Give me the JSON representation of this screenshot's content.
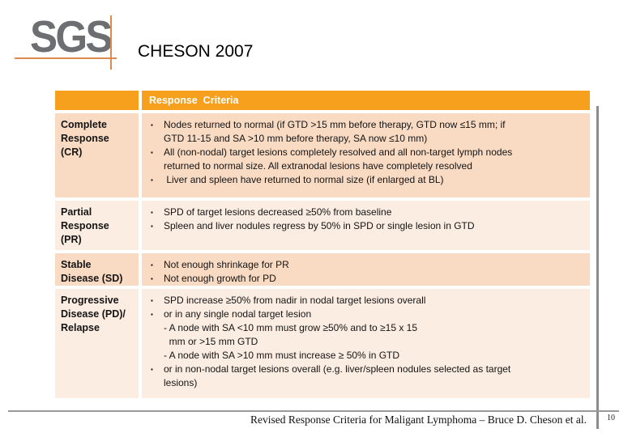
{
  "logo": {
    "text": "SGS"
  },
  "title": "CHESON 2007",
  "colors": {
    "header_orange": "#f6a01e",
    "row_peach_dark": "#f9dac3",
    "row_peach_light": "#fcede3",
    "logo_gray": "#6d6e71",
    "logo_line_orange": "#dc8a50",
    "frame_line_gray": "#8c8c8c"
  },
  "table": {
    "header": "Response  Criteria",
    "bullet_char": "▪",
    "rows": [
      {
        "label": "Complete\nResponse\n(CR)",
        "items": [
          {
            "text": "Nodes returned to normal (if GTD >15 mm before therapy, GTD now ≤15 mm; if\nGTD 11-15 and SA >10 mm before therapy, SA now ≤10 mm)"
          },
          {
            "text": "All (non-nodal) target lesions completely resolved and all non-target lymph nodes\nreturned to normal size. All extranodal lesions have completely resolved"
          },
          {
            "text": " Liver and spleen have returned to normal size (if enlarged at BL)"
          }
        ]
      },
      {
        "label": "Partial\nResponse\n(PR)",
        "items": [
          {
            "text": "SPD of target lesions decreased ≥50% from baseline"
          },
          {
            "text": "Spleen and liver nodules regress by 50% in SPD or single lesion in GTD"
          }
        ]
      },
      {
        "label": "Stable\nDisease (SD)",
        "items": [
          {
            "text": "Not enough shrinkage for PR"
          },
          {
            "text": "Not enough growth for PD"
          }
        ]
      },
      {
        "label": "Progressive\nDisease (PD)/\nRelapse",
        "items": [
          {
            "text": "SPD increase ≥50% from nadir in nodal target lesions overall"
          },
          {
            "text": "or in any single nodal target lesion\n- A node with SA <10 mm must grow ≥50% and to ≥15 x 15\n  mm or >15 mm GTD\n- A node with SA >10 mm must increase ≥ 50% in GTD"
          },
          {
            "text": "or in non-nodal target lesions overall (e.g. liver/spleen nodules selected as target\nlesions)"
          }
        ]
      }
    ]
  },
  "footer": {
    "citation": "Revised Response Criteria for Maligant Lymphoma – Bruce D. Cheson et al.",
    "page_number": "10"
  }
}
